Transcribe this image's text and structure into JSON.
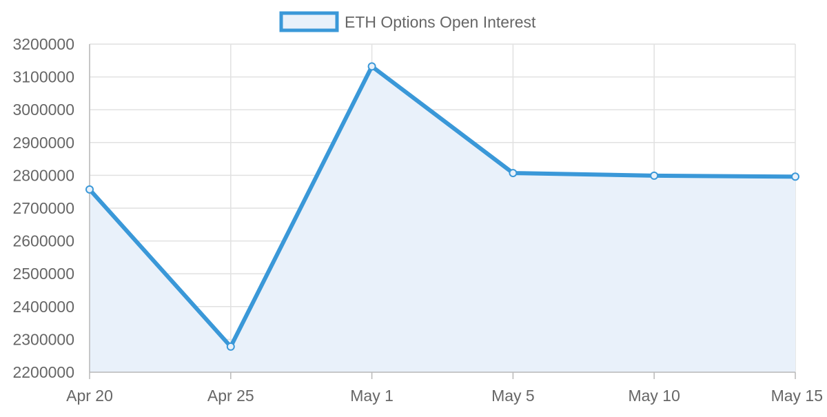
{
  "chart_data": {
    "type": "line",
    "title": "",
    "xlabel": "",
    "ylabel": "",
    "categories": [
      "Apr 20",
      "Apr 25",
      "May 1",
      "May 5",
      "May 10",
      "May 15"
    ],
    "series": [
      {
        "name": "ETH Options Open Interest",
        "values": [
          2757000,
          2278000,
          3132000,
          2807000,
          2799000,
          2796000
        ],
        "color": "#3a98d8",
        "fill_color": "#e9f1fa"
      }
    ],
    "ylim": [
      2200000,
      3200000
    ],
    "yticks": [
      "2200000",
      "2300000",
      "2400000",
      "2500000",
      "2600000",
      "2700000",
      "2800000",
      "2900000",
      "3000000",
      "3100000",
      "3200000"
    ],
    "grid": true,
    "area_fill": true,
    "legend_position": "top-center"
  }
}
